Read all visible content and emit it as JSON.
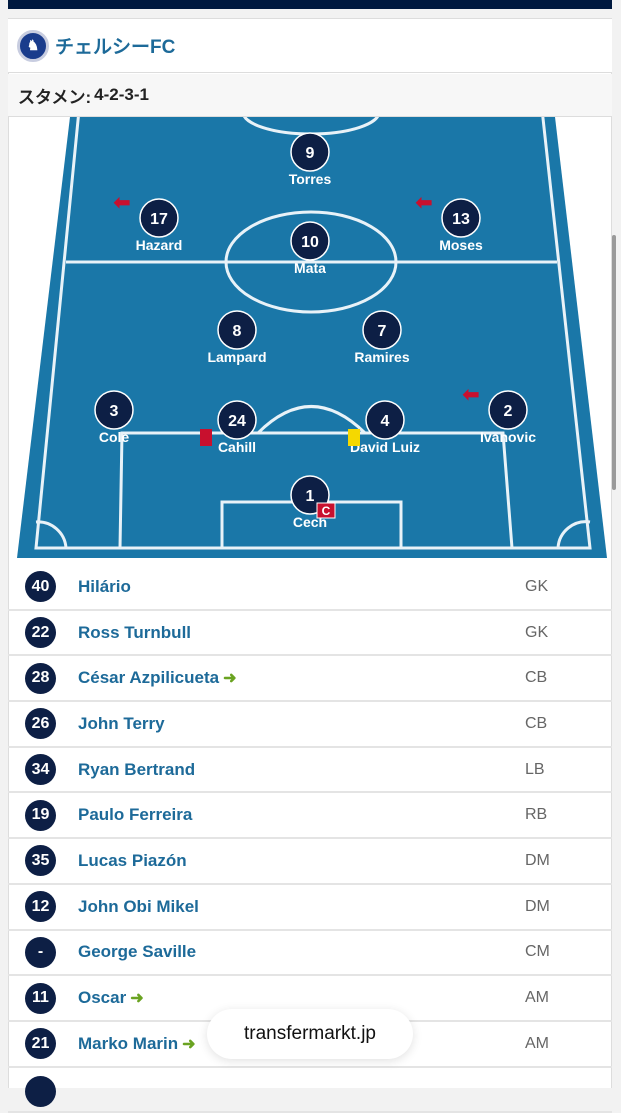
{
  "club": {
    "name": "チェルシーFC",
    "crest_icon": "chelsea-crest"
  },
  "formation": {
    "label": "スタメン:",
    "value": "4-2-3-1"
  },
  "colors": {
    "pitch": "#1a77a8",
    "token": "#0d1f45",
    "link": "#1d6a99",
    "sub_in": "#6aa321",
    "sub_out": "#c8102e",
    "red_card": "#c8102e",
    "yellow_card": "#f5d800"
  },
  "lineup": [
    {
      "num": "9",
      "name": "Torres"
    },
    {
      "num": "17",
      "name": "Hazard",
      "sub_out": true
    },
    {
      "num": "10",
      "name": "Mata"
    },
    {
      "num": "13",
      "name": "Moses",
      "sub_out": true
    },
    {
      "num": "8",
      "name": "Lampard"
    },
    {
      "num": "7",
      "name": "Ramires"
    },
    {
      "num": "3",
      "name": "Cole"
    },
    {
      "num": "24",
      "name": "Cahill",
      "card": "red"
    },
    {
      "num": "4",
      "name": "David Luiz",
      "card": "yellow"
    },
    {
      "num": "2",
      "name": "Ivanovic",
      "sub_out": true
    },
    {
      "num": "1",
      "name": "Cech",
      "captain": "C"
    }
  ],
  "bench": [
    {
      "num": "40",
      "name": "Hilário",
      "pos": "GK"
    },
    {
      "num": "22",
      "name": "Ross Turnbull",
      "pos": "GK"
    },
    {
      "num": "28",
      "name": "César Azpilicueta",
      "pos": "CB",
      "sub_in": true
    },
    {
      "num": "26",
      "name": "John Terry",
      "pos": "CB"
    },
    {
      "num": "34",
      "name": "Ryan Bertrand",
      "pos": "LB"
    },
    {
      "num": "19",
      "name": "Paulo Ferreira",
      "pos": "RB"
    },
    {
      "num": "35",
      "name": "Lucas Piazón",
      "pos": "DM"
    },
    {
      "num": "12",
      "name": "John Obi Mikel",
      "pos": "DM"
    },
    {
      "num": "-",
      "name": "George Saville",
      "pos": "CM"
    },
    {
      "num": "11",
      "name": "Oscar",
      "pos": "AM",
      "sub_in": true
    },
    {
      "num": "21",
      "name": "Marko Marin",
      "pos": "AM",
      "sub_in": true
    }
  ],
  "browser": {
    "domain": "transfermarkt.jp"
  }
}
